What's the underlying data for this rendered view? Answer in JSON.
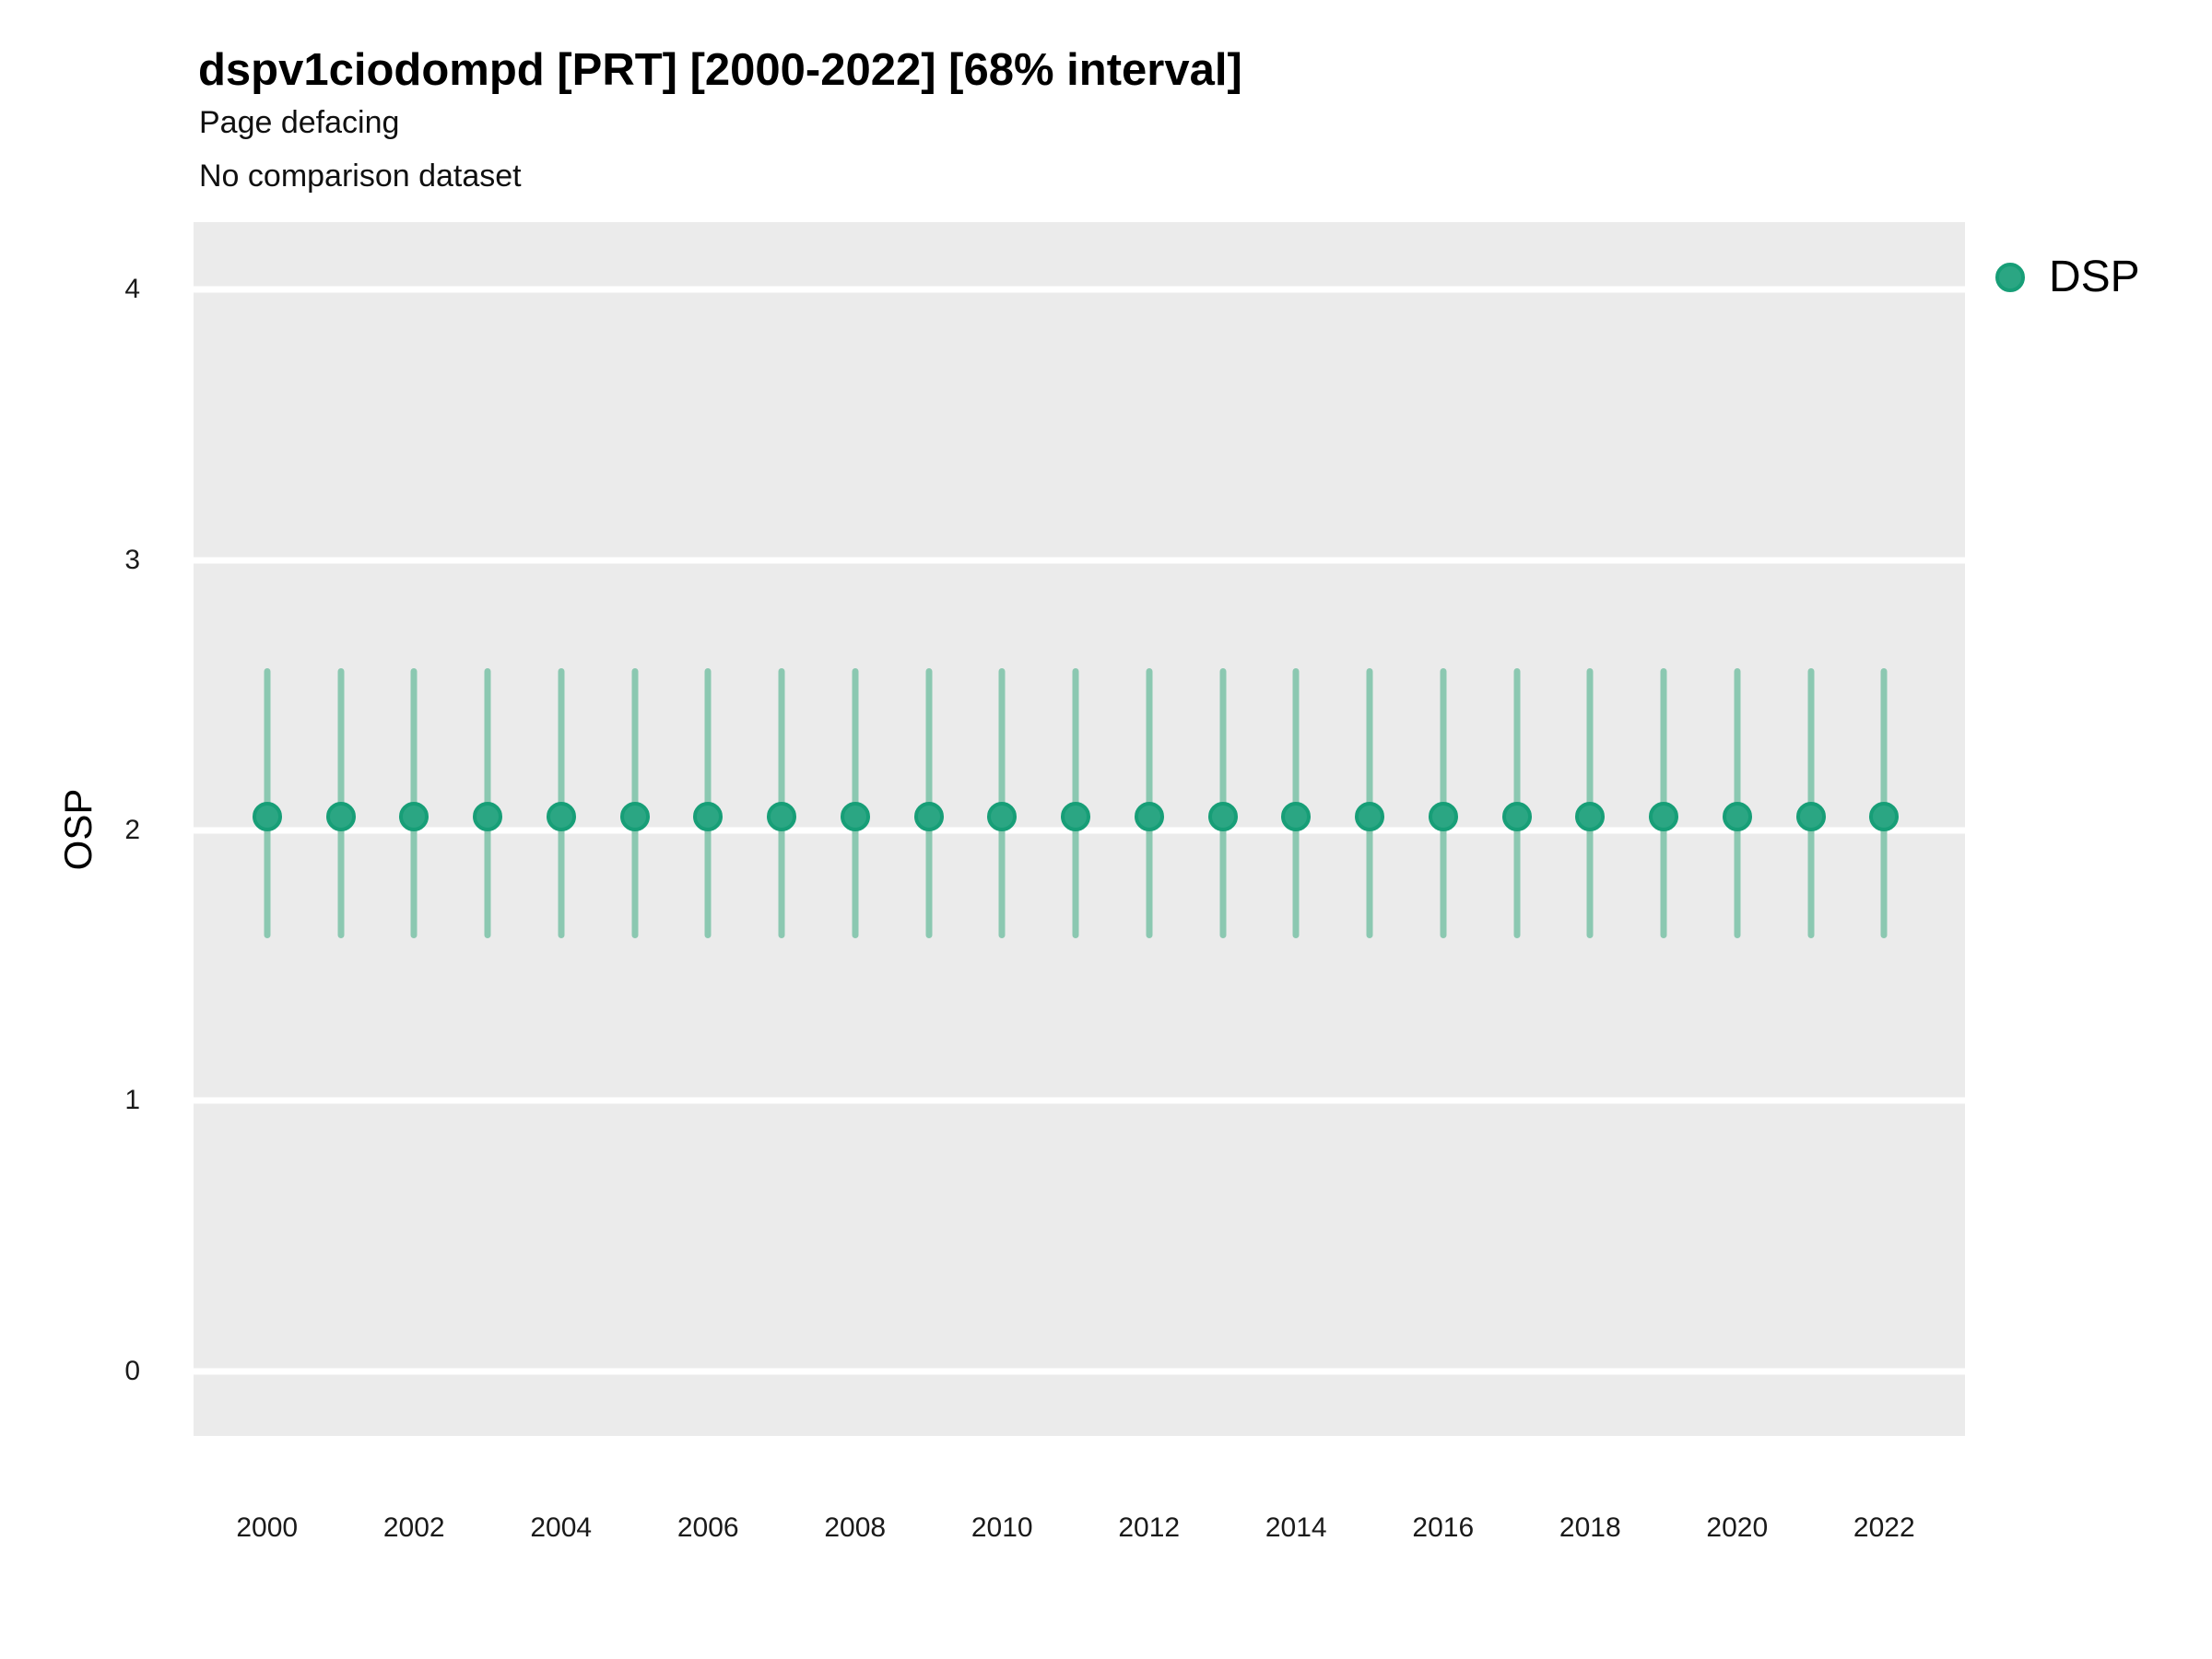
{
  "header": {
    "title": "dspv1ciodompd [PRT] [2000-2022] [68% interval]",
    "subtitle": "Page defacing",
    "comparison_note": "No comparison dataset"
  },
  "legend": {
    "position": "right",
    "items": [
      {
        "label": "DSP",
        "color": "#2ba683",
        "border": "#179e77"
      }
    ]
  },
  "chart_data": {
    "type": "scatter",
    "title": "dspv1ciodompd [PRT] [2000-2022] [68% interval]",
    "subtitle": "Page defacing",
    "note": "No comparison dataset",
    "interval_label": "68% interval",
    "xlabel": "",
    "ylabel": "OSP",
    "xlim": [
      1999,
      2023.1
    ],
    "ylim": [
      -0.24,
      4.25
    ],
    "xticks": [
      2000,
      2002,
      2004,
      2006,
      2008,
      2010,
      2012,
      2014,
      2016,
      2018,
      2020,
      2022
    ],
    "yticks": [
      0,
      1,
      2,
      3,
      4
    ],
    "grid": "horizontal-major-only",
    "legend_position": "right",
    "panel_bg": "#ebebeb",
    "grid_color": "#ffffff",
    "series": [
      {
        "name": "DSP",
        "marker_color": "#2ba683",
        "marker_border": "#179e77",
        "errorbar_color": "#8bc8b1",
        "x": [
          2000,
          2001,
          2002,
          2003,
          2004,
          2005,
          2006,
          2007,
          2008,
          2009,
          2010,
          2011,
          2012,
          2013,
          2014,
          2015,
          2016,
          2017,
          2018,
          2019,
          2020,
          2021,
          2022
        ],
        "y": [
          2.05,
          2.05,
          2.05,
          2.05,
          2.05,
          2.05,
          2.05,
          2.05,
          2.05,
          2.05,
          2.05,
          2.05,
          2.05,
          2.05,
          2.05,
          2.05,
          2.05,
          2.05,
          2.05,
          2.05,
          2.05,
          2.05,
          2.05
        ],
        "y_low": [
          1.6,
          1.6,
          1.6,
          1.6,
          1.6,
          1.6,
          1.6,
          1.6,
          1.6,
          1.6,
          1.6,
          1.6,
          1.6,
          1.6,
          1.6,
          1.6,
          1.6,
          1.6,
          1.6,
          1.6,
          1.6,
          1.6,
          1.6
        ],
        "y_high": [
          2.6,
          2.6,
          2.6,
          2.6,
          2.6,
          2.6,
          2.6,
          2.6,
          2.6,
          2.6,
          2.6,
          2.6,
          2.6,
          2.6,
          2.6,
          2.6,
          2.6,
          2.6,
          2.6,
          2.6,
          2.6,
          2.6,
          2.6
        ]
      }
    ]
  }
}
